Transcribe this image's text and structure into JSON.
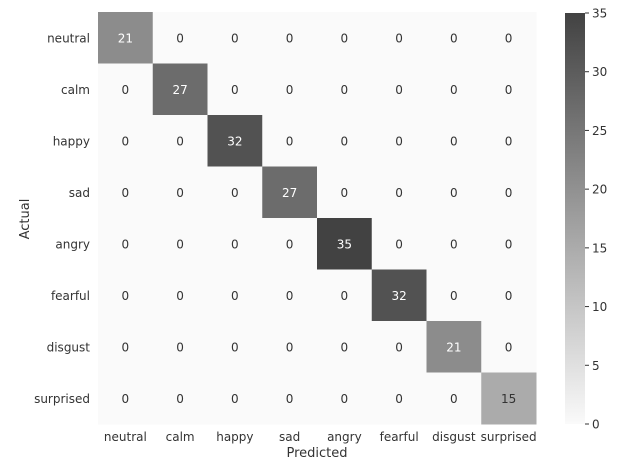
{
  "chart_data": {
    "type": "heatmap",
    "xlabel": "Predicted",
    "ylabel": "Actual",
    "x_categories": [
      "neutral",
      "calm",
      "happy",
      "sad",
      "angry",
      "fearful",
      "disgust",
      "surprised"
    ],
    "y_categories": [
      "neutral",
      "calm",
      "happy",
      "sad",
      "angry",
      "fearful",
      "disgust",
      "surprised"
    ],
    "values": [
      [
        21,
        0,
        0,
        0,
        0,
        0,
        0,
        0
      ],
      [
        0,
        27,
        0,
        0,
        0,
        0,
        0,
        0
      ],
      [
        0,
        0,
        32,
        0,
        0,
        0,
        0,
        0
      ],
      [
        0,
        0,
        0,
        27,
        0,
        0,
        0,
        0
      ],
      [
        0,
        0,
        0,
        0,
        35,
        0,
        0,
        0
      ],
      [
        0,
        0,
        0,
        0,
        0,
        32,
        0,
        0
      ],
      [
        0,
        0,
        0,
        0,
        0,
        0,
        21,
        0
      ],
      [
        0,
        0,
        0,
        0,
        0,
        0,
        0,
        15
      ]
    ],
    "colorbar": {
      "min": 0,
      "max": 35,
      "ticks": [
        0,
        5,
        10,
        15,
        20,
        25,
        30,
        35
      ],
      "low_color": "#fafafa",
      "high_color": "#424242"
    },
    "annotation_dark_text_color": "#333333",
    "annotation_light_text_color": "#ffffff"
  }
}
